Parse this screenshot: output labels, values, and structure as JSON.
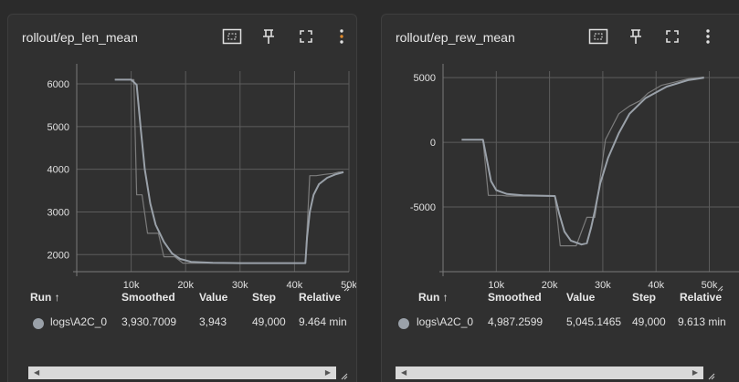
{
  "cards": [
    {
      "title": "rollout/ep_len_mean",
      "table": {
        "headers": [
          "Run ↑",
          "Smoothed",
          "Value",
          "Step",
          "Relative"
        ],
        "row": {
          "run": "logs\\A2C_0",
          "smoothed": "3,930.7009",
          "value": "3,943",
          "step": "49,000",
          "relative": "9.464 min"
        }
      }
    },
    {
      "title": "rollout/ep_rew_mean",
      "table": {
        "headers": [
          "Run ↑",
          "Smoothed",
          "Value",
          "Step",
          "Relative"
        ],
        "row": {
          "run": "logs\\A2C_0",
          "smoothed": "4,987.2599",
          "value": "5,045.1465",
          "step": "49,000",
          "relative": "9.613 min"
        }
      }
    }
  ],
  "toolbar_icons": [
    "fit-domain-icon",
    "pin-icon",
    "fullscreen-icon",
    "more-options-icon"
  ],
  "colors": {
    "smoothed_line": "#9aa1a9",
    "raw_line": "#7c7c7c",
    "grid": "#5c5c5c",
    "background": "#303030"
  },
  "chart_data": [
    {
      "type": "line",
      "title": "rollout/ep_len_mean",
      "xlim": [
        0,
        50000
      ],
      "ylim": [
        1600,
        6300
      ],
      "xticks": [
        "10k",
        "20k",
        "30k",
        "40k",
        "50k"
      ],
      "yticks": [
        "2000",
        "3000",
        "4000",
        "5000",
        "6000"
      ],
      "grid": true,
      "series": [
        {
          "name": "logs\\A2C_0",
          "role": "raw",
          "x": [
            7000,
            10500,
            11000,
            12000,
            13000,
            15000,
            16000,
            18000,
            19500,
            20500,
            30000,
            42000,
            42800,
            44000,
            45500,
            47000,
            48000,
            49000
          ],
          "y": [
            6100,
            6100,
            3400,
            3400,
            2500,
            2500,
            1950,
            1950,
            1800,
            1800,
            1800,
            1800,
            3850,
            3850,
            3880,
            3900,
            3930,
            3943
          ]
        },
        {
          "name": "logs\\A2C_0",
          "role": "smoothed",
          "x": [
            7000,
            10000,
            11000,
            11800,
            12500,
            13500,
            14500,
            16000,
            17500,
            19000,
            21000,
            25000,
            30000,
            35000,
            40000,
            42000,
            42300,
            42800,
            43500,
            44500,
            46000,
            47500,
            49000
          ],
          "y": [
            6100,
            6100,
            5980,
            4900,
            4000,
            3200,
            2700,
            2300,
            2030,
            1900,
            1830,
            1810,
            1800,
            1800,
            1800,
            1800,
            2400,
            3000,
            3400,
            3650,
            3800,
            3880,
            3931
          ]
        }
      ]
    },
    {
      "type": "line",
      "title": "rollout/ep_rew_mean",
      "xlim": [
        0,
        53000
      ],
      "ylim": [
        -10000,
        5500
      ],
      "xticks": [
        "10k",
        "20k",
        "30k",
        "40k",
        "50k"
      ],
      "yticks": [
        "5000",
        "0",
        "-5000"
      ],
      "grid": true,
      "series": [
        {
          "name": "logs\\A2C_0",
          "role": "raw",
          "x": [
            3500,
            7500,
            8500,
            11000,
            12000,
            21000,
            22000,
            25000,
            27000,
            27500,
            28500,
            29500,
            30500,
            33000,
            35000,
            37000,
            38500,
            41000,
            43000,
            46000,
            49000
          ],
          "y": [
            200,
            200,
            -4100,
            -4100,
            -4150,
            -4150,
            -8000,
            -8000,
            -5800,
            -5800,
            -5800,
            -2800,
            200,
            2200,
            2800,
            3200,
            3800,
            4400,
            4600,
            4900,
            5045
          ]
        },
        {
          "name": "logs\\A2C_0",
          "role": "smoothed",
          "x": [
            3500,
            7500,
            8300,
            9000,
            10000,
            12000,
            15000,
            21000,
            21800,
            22800,
            24000,
            26000,
            27000,
            27800,
            28500,
            29500,
            31000,
            33000,
            35000,
            38000,
            42000,
            46000,
            49000
          ],
          "y": [
            200,
            200,
            -1500,
            -3000,
            -3700,
            -4000,
            -4100,
            -4150,
            -5500,
            -6900,
            -7600,
            -7900,
            -7800,
            -6600,
            -5300,
            -3200,
            -1200,
            700,
            2200,
            3400,
            4300,
            4800,
            4987
          ]
        }
      ]
    }
  ]
}
